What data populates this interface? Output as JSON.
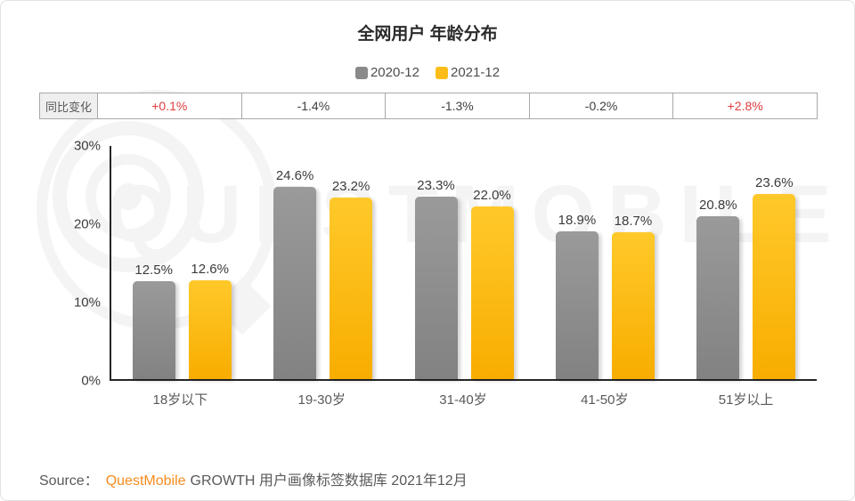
{
  "title": "全网用户 年龄分布",
  "legend": [
    {
      "label": "2020-12",
      "color": "#8a8a8a"
    },
    {
      "label": "2021-12",
      "color": "#fcbd18"
    }
  ],
  "yoy_row": {
    "label": "同比变化",
    "values": [
      {
        "text": "+0.1%",
        "positive": true
      },
      {
        "text": "-1.4%",
        "positive": false
      },
      {
        "text": "-1.3%",
        "positive": false
      },
      {
        "text": "-0.2%",
        "positive": false
      },
      {
        "text": "+2.8%",
        "positive": true
      }
    ]
  },
  "chart_data": {
    "type": "bar",
    "title": "全网用户 年龄分布",
    "categories": [
      "18岁以下",
      "19-30岁",
      "31-40岁",
      "41-50岁",
      "51岁以上"
    ],
    "series": [
      {
        "name": "2020-12",
        "values": [
          12.5,
          24.6,
          23.3,
          18.9,
          20.8
        ],
        "color_top": "#9a9a9a",
        "color_bottom": "#828282"
      },
      {
        "name": "2021-12",
        "values": [
          12.6,
          23.2,
          22.0,
          18.7,
          23.6
        ],
        "color_top": "#ffc92a",
        "color_bottom": "#f8ad00"
      }
    ],
    "value_suffix": "%",
    "yoy_change": [
      "+0.1%",
      "-1.4%",
      "-1.3%",
      "-0.2%",
      "+2.8%"
    ],
    "yticks": [
      0,
      10,
      20,
      30
    ],
    "ytick_labels": [
      "0%",
      "10%",
      "20%",
      "30%"
    ],
    "ylim": [
      0,
      30
    ],
    "grid": false,
    "legend_position": "top"
  },
  "source": {
    "prefix": "Source：",
    "brand": "QuestMobile",
    "rest": "GROWTH 用户画像标签数据库 2021年12月"
  },
  "watermark": {
    "text": "QUESTMOBILE"
  },
  "colors": {
    "positive": "#e23c3c",
    "negative": "#404040",
    "brand_orange": "#f68b1f"
  }
}
